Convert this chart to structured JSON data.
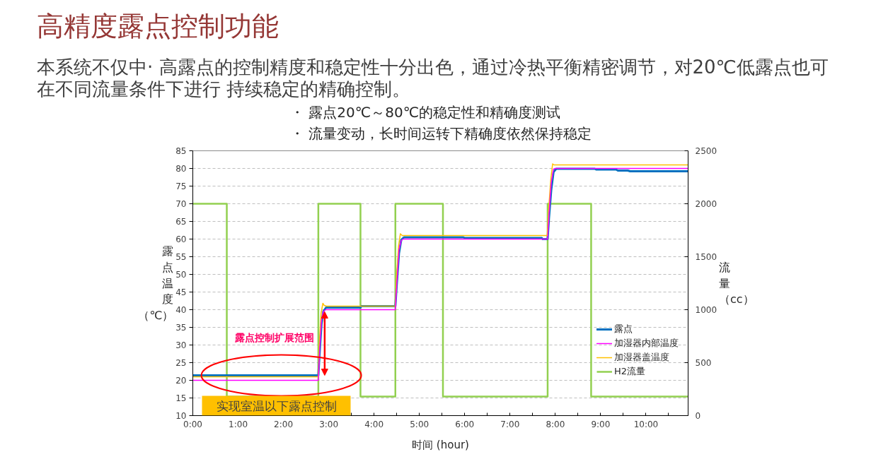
{
  "chart_data": {
    "type": "line",
    "title": "高精度露点控制功能",
    "subtitle": "本系统不仅中· 高露点的控制精度和稳定性十分出色，通过冷热平衡精密调节，对20℃低露点也可在不同流量条件下进行 持续稳定的精确控制。",
    "xlabel": "时间 (hour)",
    "ylabel": "露点温度（℃）",
    "y2label": "流量（cc）",
    "annotations": [
      "・ 露点20℃～80℃的稳定性和精确度测试",
      "・ 流量变动，长时间运转下精确度依然保持稳定",
      {
        "text": "露点控制扩展范围",
        "x": 2.91,
        "y": 39.4
      },
      "实现室温以下露点控制"
    ],
    "xlim": [
      0,
      10.93
    ],
    "xticks": [
      {
        "value": 0,
        "label": "0:00"
      },
      {
        "value": 0.5,
        "label": null
      },
      {
        "value": 1,
        "label": "1:00"
      },
      {
        "value": 1.5,
        "label": null
      },
      {
        "value": 2,
        "label": "2:00"
      },
      {
        "value": 2.5,
        "label": null
      },
      {
        "value": 3,
        "label": "3:00"
      },
      {
        "value": 3.5,
        "label": null
      },
      {
        "value": 4,
        "label": "4:00"
      },
      {
        "value": 4.5,
        "label": null
      },
      {
        "value": 5,
        "label": "5:00"
      },
      {
        "value": 5.5,
        "label": null
      },
      {
        "value": 6,
        "label": "6:00"
      },
      {
        "value": 6.5,
        "label": null
      },
      {
        "value": 7,
        "label": "7:00"
      },
      {
        "value": 7.5,
        "label": null
      },
      {
        "value": 8,
        "label": "8:00"
      },
      {
        "value": 8.5,
        "label": null
      },
      {
        "value": 9,
        "label": "9:00"
      },
      {
        "value": 9.5,
        "label": null
      },
      {
        "value": 10,
        "label": "10:00"
      },
      {
        "value": 10.5,
        "label": null
      }
    ],
    "ylim": [
      10,
      85
    ],
    "yticks": [
      10,
      15,
      20,
      25,
      30,
      35,
      40,
      45,
      50,
      55,
      60,
      65,
      70,
      75,
      80,
      85
    ],
    "y2lim": [
      0,
      2500
    ],
    "y2ticks": [
      0,
      500,
      1000,
      1500,
      2000,
      2500
    ],
    "grid": "y",
    "legend": "bottom right",
    "series": [
      {
        "name": "露点",
        "color": "#0070c0",
        "x": [
          0,
          2.77,
          2.8,
          2.84,
          2.88,
          2.94,
          3.7,
          3.72,
          4.47,
          4.5,
          4.55,
          4.6,
          4.66,
          5.97,
          6.0,
          7.7,
          7.72,
          7.83,
          7.86,
          7.91,
          7.96,
          8.02,
          8.87,
          8.9,
          9.34,
          9.38,
          9.6,
          9.65,
          10.93
        ],
        "values": [
          21.4,
          21.4,
          28,
          36,
          39.5,
          40.6,
          40.6,
          41.0,
          41.0,
          47,
          56,
          59.8,
          60.5,
          60.5,
          60.3,
          60.3,
          60.0,
          60.0,
          66,
          74,
          79,
          79.9,
          79.9,
          79.7,
          79.7,
          79.4,
          79.4,
          79.2,
          79.2
        ]
      },
      {
        "name": "加湿器内部温度",
        "color": "#ff00ff",
        "x": [
          0,
          2.77,
          2.8,
          2.84,
          2.88,
          2.93,
          4.47,
          4.5,
          4.55,
          4.6,
          4.64,
          7.83,
          7.86,
          7.91,
          7.96,
          8.0,
          10.93
        ],
        "values": [
          20.0,
          20.0,
          29,
          37,
          39.5,
          40.0,
          40.0,
          47,
          57,
          59.6,
          60.0,
          60.0,
          67,
          76,
          79.8,
          80.0,
          80.0
        ]
      },
      {
        "name": "加湿器盖温度",
        "color": "#ffc000",
        "x": [
          0,
          2.77,
          2.79,
          2.83,
          2.87,
          2.9,
          2.95,
          4.47,
          4.49,
          4.54,
          4.58,
          4.62,
          7.82,
          7.85,
          7.9,
          7.94,
          7.97,
          10.93
        ],
        "values": [
          21.0,
          21.0,
          30,
          39,
          41.8,
          41.2,
          41.0,
          41.0,
          48,
          58,
          61.5,
          61.0,
          61.0,
          68,
          77,
          81.3,
          81.0,
          81.0
        ]
      },
      {
        "name": "H2流量",
        "color": "#92d050",
        "type": "step",
        "axis": "y2",
        "x": [
          0,
          0.75,
          2.77,
          3.7,
          4.47,
          5.52,
          7.83,
          8.79,
          10.93
        ],
        "values": [
          2000,
          180,
          2000,
          180,
          2000,
          180,
          2000,
          180,
          180
        ]
      }
    ]
  }
}
